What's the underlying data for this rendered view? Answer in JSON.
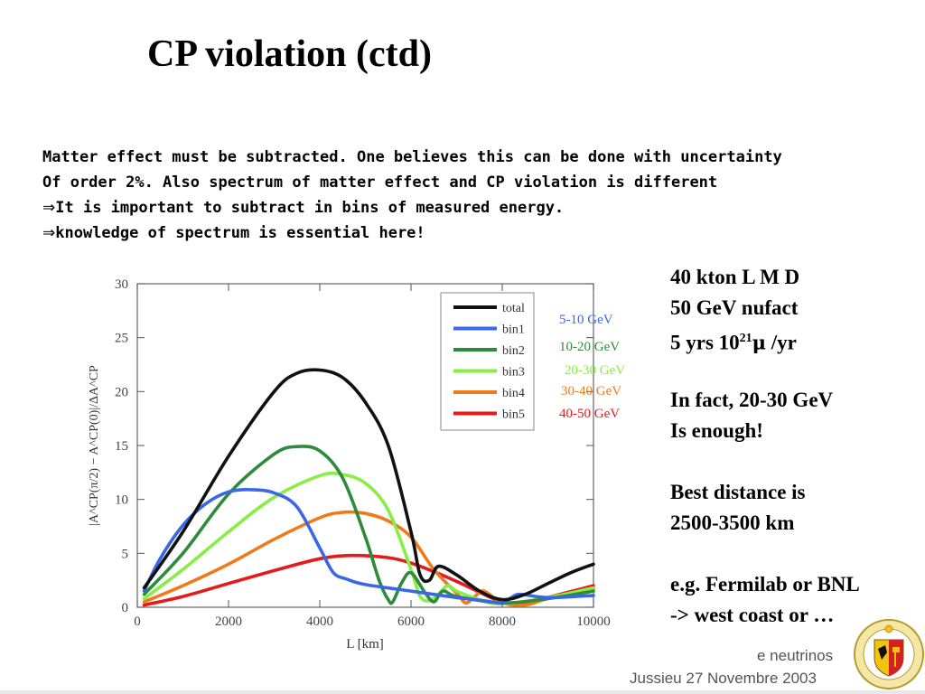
{
  "slide": {
    "title": "CP violation (ctd)",
    "intro": [
      "Matter effect must be subtracted. One believes this can be done with uncertainty",
      "Of order 2%. Also spectrum of matter effect and CP violation is different",
      "It is important to subtract in bins of measured energy.",
      "knowledge of spectrum is essential here!"
    ],
    "arrow": "⇒",
    "side_lines": [
      "40 kton L M D",
      "50 GeV nufact",
      "",
      "",
      "In fact, 20-30 GeV",
      "Is enough!",
      "",
      "Best distance is",
      "2500-3500 km",
      "",
      "e.g. Fermilab or BNL",
      "-> west coast or …"
    ],
    "muon_line": {
      "prefix": "5 yrs 10",
      "exp": "21",
      "unit": "μ",
      "suffix": " /yr"
    },
    "footer_line1": "e neutrinos",
    "footer_line2": "Jussieu 27 Novembre 2003"
  },
  "chart_data": {
    "type": "line",
    "title": "",
    "xlabel": "L [km]",
    "ylabel": "|A^CP(π/2) − A^CP(0)|/ΔA^CP",
    "xlim": [
      0,
      10000
    ],
    "ylim": [
      0,
      30
    ],
    "xticks": [
      0,
      2000,
      4000,
      6000,
      8000,
      10000
    ],
    "yticks": [
      0,
      5,
      10,
      15,
      20,
      25,
      30
    ],
    "legend_position": "top-right",
    "series": [
      {
        "name": "total",
        "color": "#111111",
        "annotation": "",
        "x": [
          150,
          1000,
          2000,
          3000,
          3500,
          4000,
          4500,
          5000,
          5500,
          6000,
          6200,
          6400,
          6600,
          7000,
          7500,
          8000,
          8500,
          9000,
          9500,
          10000
        ],
        "y": [
          1.8,
          7,
          14,
          20,
          21.7,
          22,
          21.3,
          19,
          15,
          7,
          3,
          2.5,
          3.8,
          3,
          1.5,
          0.7,
          1.2,
          2.2,
          3.2,
          4
        ]
      },
      {
        "name": "bin1",
        "color": "#3a66e8",
        "annotation": "5-10 GeV",
        "x": [
          150,
          500,
          1000,
          1500,
          2000,
          2500,
          3000,
          3500,
          4000,
          4300,
          4600,
          5000,
          6000,
          7000,
          7600,
          8000,
          8200,
          8400,
          9000,
          10000
        ],
        "y": [
          1.5,
          4.5,
          7.6,
          9.6,
          10.7,
          10.9,
          10.6,
          9.3,
          5.5,
          3.2,
          2.6,
          2.1,
          1.5,
          0.9,
          0.6,
          0.4,
          0.9,
          1.2,
          0.9,
          1.1
        ]
      },
      {
        "name": "bin2",
        "color": "#2e8b3c",
        "annotation": "10-20 GeV",
        "x": [
          150,
          1000,
          2000,
          3000,
          3500,
          4000,
          4500,
          5000,
          5300,
          5500,
          5600,
          5800,
          6000,
          6300,
          6500,
          6700,
          7000,
          8000,
          9000,
          10000
        ],
        "y": [
          1.2,
          5,
          10.5,
          14.2,
          14.9,
          14.5,
          12,
          6.5,
          2.5,
          0.7,
          0.5,
          2.3,
          3.2,
          1.4,
          0.5,
          1.5,
          1,
          0.4,
          0.8,
          1.5
        ]
      },
      {
        "name": "bin3",
        "color": "#88ee44",
        "annotation": "20-30 GeV",
        "x": [
          150,
          1000,
          2000,
          3000,
          4000,
          4500,
          5000,
          5500,
          6000,
          6200,
          6400,
          6600,
          6800,
          7000,
          7500,
          8000,
          9000,
          10000
        ],
        "y": [
          0.8,
          3.5,
          7,
          10.2,
          12.2,
          12.3,
          11.5,
          9,
          3.5,
          1,
          0.6,
          1.2,
          2,
          1.5,
          0.7,
          0.3,
          0.9,
          1.8
        ]
      },
      {
        "name": "bin4",
        "color": "#f07a1a",
        "annotation": "30-40 GeV",
        "x": [
          150,
          1000,
          2000,
          3000,
          4000,
          4500,
          5000,
          5500,
          6000,
          6500,
          7000,
          7200,
          7400,
          7600,
          8000,
          8500,
          9000,
          10000
        ],
        "y": [
          0.5,
          2,
          4,
          6.3,
          8.3,
          8.8,
          8.7,
          8,
          6.5,
          3.5,
          1.3,
          0.4,
          1,
          1.5,
          0.4,
          0.2,
          0.8,
          1.7
        ]
      },
      {
        "name": "bin5",
        "color": "#e51a1a",
        "annotation": "40-50 GeV",
        "x": [
          150,
          1000,
          2000,
          3000,
          4000,
          4700,
          5500,
          6000,
          6500,
          7000,
          7500,
          8000,
          8500,
          9000,
          10000
        ],
        "y": [
          0.2,
          1,
          2.2,
          3.4,
          4.5,
          4.8,
          4.6,
          4.1,
          3.3,
          2.4,
          1.4,
          0.5,
          0.3,
          0.9,
          2
        ]
      }
    ]
  }
}
